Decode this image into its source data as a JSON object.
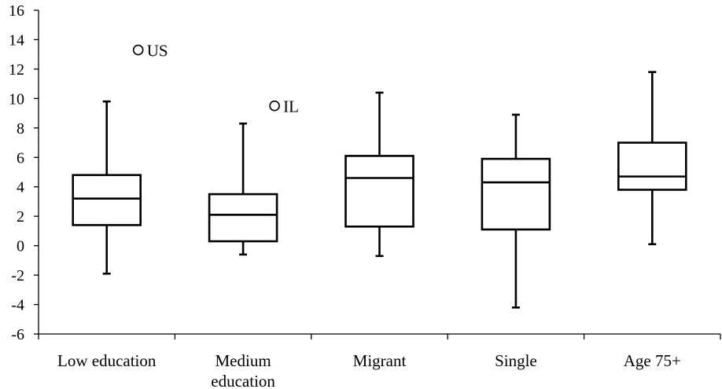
{
  "chart_data": {
    "type": "boxplot",
    "title": "",
    "xlabel": "",
    "ylabel": "",
    "ylim": [
      -6,
      16
    ],
    "yticks": [
      -6,
      -4,
      -2,
      0,
      2,
      4,
      6,
      8,
      10,
      12,
      14,
      16
    ],
    "ytick_labels": [
      "-6",
      "-4",
      "-2",
      "0",
      "2",
      "4",
      "6",
      "8",
      "10",
      "12",
      "14",
      "16"
    ],
    "grid": false,
    "legend": "none",
    "categories": [
      [
        "Low education"
      ],
      [
        "Medium",
        "education"
      ],
      [
        "Migrant"
      ],
      [
        "Single"
      ],
      [
        "Age 75+"
      ]
    ],
    "boxes": [
      {
        "min": -1.9,
        "q1": 1.4,
        "median": 3.2,
        "q3": 4.8,
        "max": 9.8
      },
      {
        "min": -0.6,
        "q1": 0.3,
        "median": 2.1,
        "q3": 3.5,
        "max": 8.3
      },
      {
        "min": -0.7,
        "q1": 1.3,
        "median": 4.6,
        "q3": 6.1,
        "max": 10.4
      },
      {
        "min": -4.2,
        "q1": 1.1,
        "median": 4.3,
        "q3": 5.9,
        "max": 8.9
      },
      {
        "min": 0.1,
        "q1": 3.8,
        "median": 4.7,
        "q3": 7.0,
        "max": 11.8
      }
    ],
    "outliers": [
      {
        "category_index": 0,
        "value": 13.3,
        "label": "US"
      },
      {
        "category_index": 1,
        "value": 9.5,
        "label": "IL"
      }
    ]
  }
}
